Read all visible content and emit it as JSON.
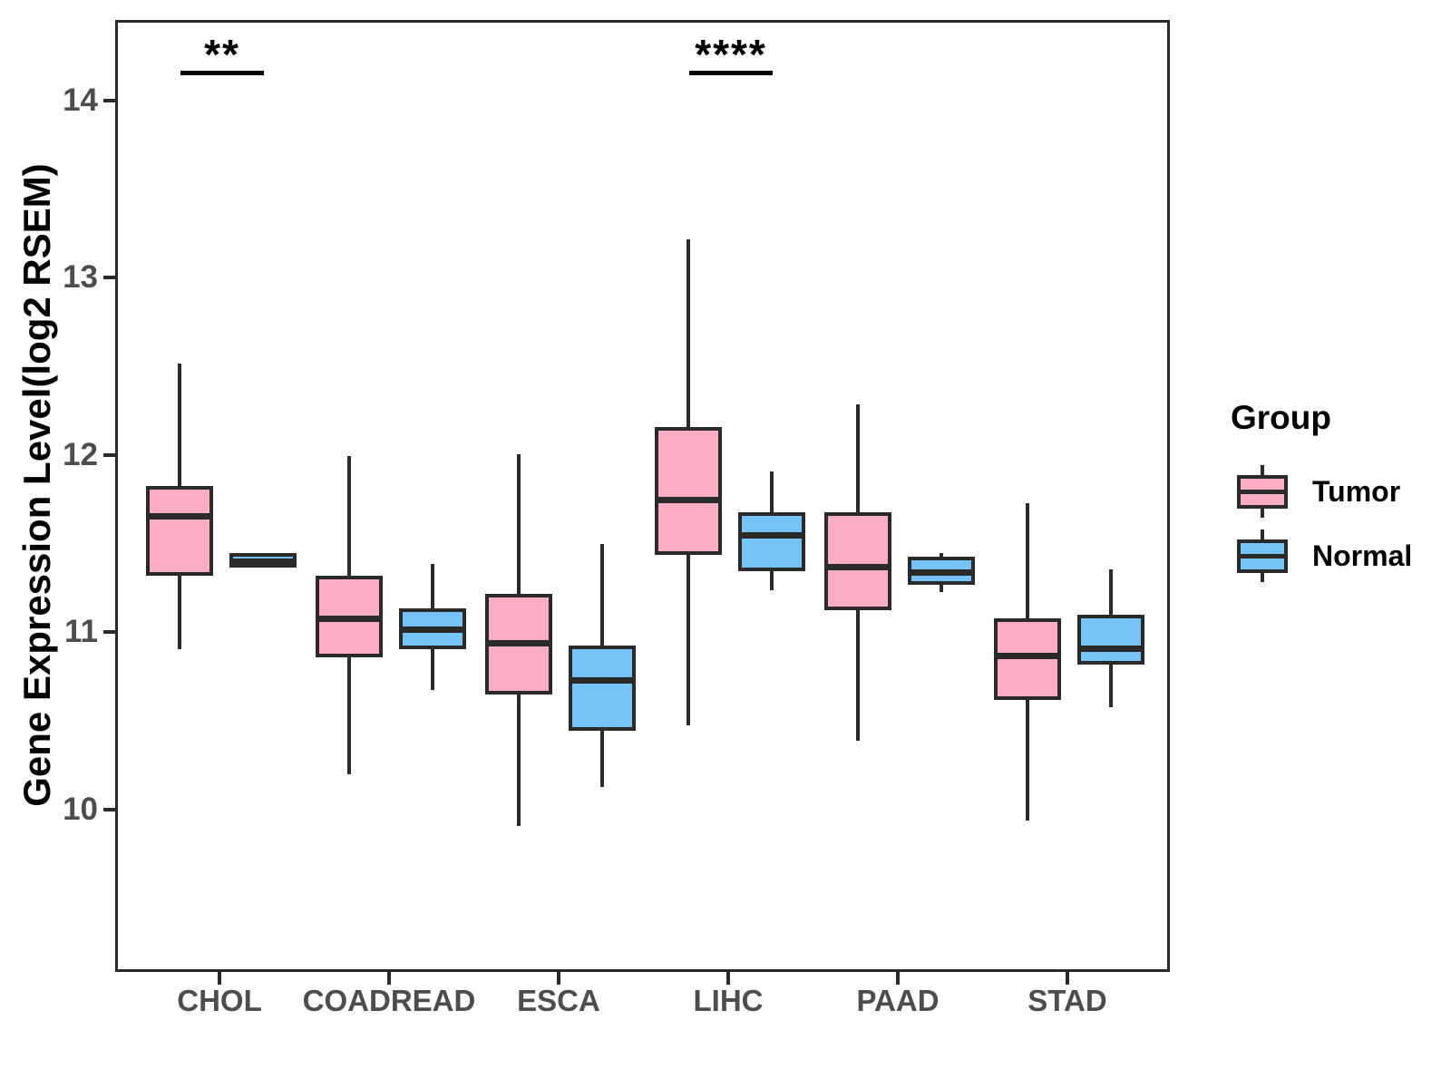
{
  "legend": {
    "title": "Group",
    "items": [
      {
        "label": "Tumor",
        "color": "#FBAEC1"
      },
      {
        "label": "Normal",
        "color": "#75C2F6"
      }
    ]
  },
  "colors": {
    "tumor": "#FBAEC1",
    "normal": "#75C2F6",
    "line": "#2A2A2A",
    "axis_text": "#4D4D4D",
    "annotation": "#000000",
    "background": "#FFFFFF"
  },
  "chart_data": {
    "type": "boxplot",
    "title": "",
    "ylabel": "Gene Expression Level(log2 RSEM)",
    "xlabel": "",
    "y_ticks": [
      14,
      13,
      12,
      11,
      10
    ],
    "ylim": [
      9.1,
      14.45
    ],
    "grid": false,
    "legend_position": "right",
    "categories": [
      "CHOL",
      "COADREAD",
      "ESCA",
      "LIHC",
      "PAAD",
      "STAD"
    ],
    "series": [
      {
        "name": "Tumor",
        "color": "#FBAEC1",
        "boxes": [
          {
            "category": "CHOL",
            "min": 10.92,
            "q1": 11.33,
            "median": 11.67,
            "q3": 11.84,
            "max": 12.53
          },
          {
            "category": "COADREAD",
            "min": 10.21,
            "q1": 10.87,
            "median": 11.09,
            "q3": 11.33,
            "max": 12.01
          },
          {
            "category": "ESCA",
            "min": 9.92,
            "q1": 10.66,
            "median": 10.95,
            "q3": 11.23,
            "max": 12.02
          },
          {
            "category": "LIHC",
            "min": 10.49,
            "q1": 11.45,
            "median": 11.76,
            "q3": 12.17,
            "max": 13.23
          },
          {
            "category": "PAAD",
            "min": 10.4,
            "q1": 11.14,
            "median": 11.38,
            "q3": 11.69,
            "max": 12.3
          },
          {
            "category": "STAD",
            "min": 9.95,
            "q1": 10.63,
            "median": 10.88,
            "q3": 11.09,
            "max": 11.74
          }
        ]
      },
      {
        "name": "Normal",
        "color": "#75C2F6",
        "boxes": [
          {
            "category": "CHOL",
            "min": 11.38,
            "q1": 11.38,
            "median": 11.41,
            "q3": 11.46,
            "max": 11.46
          },
          {
            "category": "COADREAD",
            "min": 10.69,
            "q1": 10.92,
            "median": 11.03,
            "q3": 11.15,
            "max": 11.4
          },
          {
            "category": "ESCA",
            "min": 10.14,
            "q1": 10.46,
            "median": 10.74,
            "q3": 10.94,
            "max": 11.51
          },
          {
            "category": "LIHC",
            "min": 11.25,
            "q1": 11.36,
            "median": 11.56,
            "q3": 11.69,
            "max": 11.92
          },
          {
            "category": "PAAD",
            "min": 11.24,
            "q1": 11.28,
            "median": 11.35,
            "q3": 11.44,
            "max": 11.46
          },
          {
            "category": "STAD",
            "min": 10.59,
            "q1": 10.83,
            "median": 10.92,
            "q3": 11.11,
            "max": 11.37
          }
        ]
      }
    ],
    "annotations": [
      {
        "category": "CHOL",
        "label": "**"
      },
      {
        "category": "LIHC",
        "label": "****"
      }
    ]
  }
}
